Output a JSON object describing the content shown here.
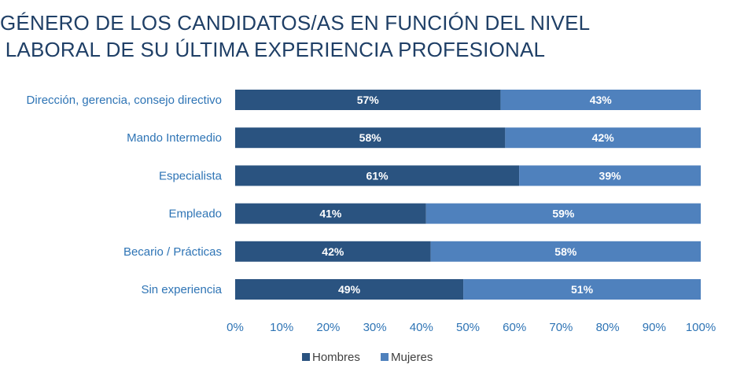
{
  "title_lines": [
    "GÉNERO DE LOS CANDIDATOS/AS EN FUNCIÓN DEL NIVEL",
    "LABORAL DE SU ÚLTIMA EXPERIENCIA PROFESIONAL"
  ],
  "colors": {
    "hombres": "#2a5380",
    "mujeres": "#4f81bd",
    "title": "#1f3f66",
    "axis_text": "#2e74b5",
    "legend_text": "#404040"
  },
  "chart_data": {
    "type": "bar",
    "orientation": "horizontal",
    "stacked": true,
    "percent": true,
    "title": "GÉNERO DE LOS CANDIDATOS/AS EN FUNCIÓN DEL NIVEL LABORAL DE SU ÚLTIMA EXPERIENCIA PROFESIONAL",
    "categories": [
      "Dirección, gerencia, consejo directivo",
      "Mando Intermedio",
      "Especialista",
      "Empleado",
      "Becario / Prácticas",
      "Sin experiencia"
    ],
    "series": [
      {
        "name": "Hombres",
        "values": [
          57,
          58,
          61,
          41,
          42,
          49
        ]
      },
      {
        "name": "Mujeres",
        "values": [
          43,
          42,
          39,
          59,
          58,
          51
        ]
      }
    ],
    "xlim": [
      0,
      100
    ],
    "xticks": [
      "0%",
      "10%",
      "20%",
      "30%",
      "40%",
      "50%",
      "60%",
      "70%",
      "80%",
      "90%",
      "100%"
    ],
    "grid": false,
    "legend": "bottom"
  }
}
